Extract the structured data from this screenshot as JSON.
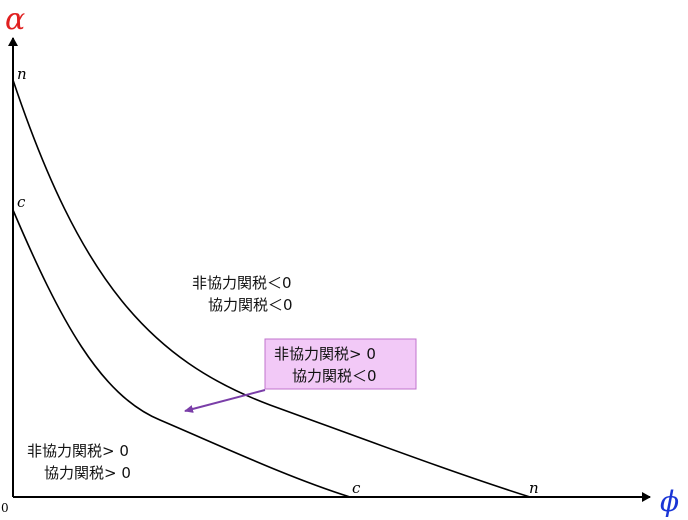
{
  "axes": {
    "y_symbol": "α",
    "x_symbol": "ϕ",
    "origin_label": "0",
    "y_symbol_color": "#e02020",
    "x_symbol_color": "#1a35d6"
  },
  "curves": {
    "n_label_top": "n",
    "n_label_bottom": "n",
    "c_label_top": "c",
    "c_label_bottom": "c"
  },
  "regions": {
    "upper": {
      "line1": "非協力関税＜0",
      "line2": "協力関税＜0"
    },
    "middle": {
      "line1": "非協力関税> 0",
      "line2": "協力関税＜0",
      "box_fill": "#f2c9f7",
      "box_border": "#c074cc",
      "arrow_color": "#7a3ea8"
    },
    "lower": {
      "line1": "非協力関税> 0",
      "line2": "協力関税> 0"
    }
  }
}
